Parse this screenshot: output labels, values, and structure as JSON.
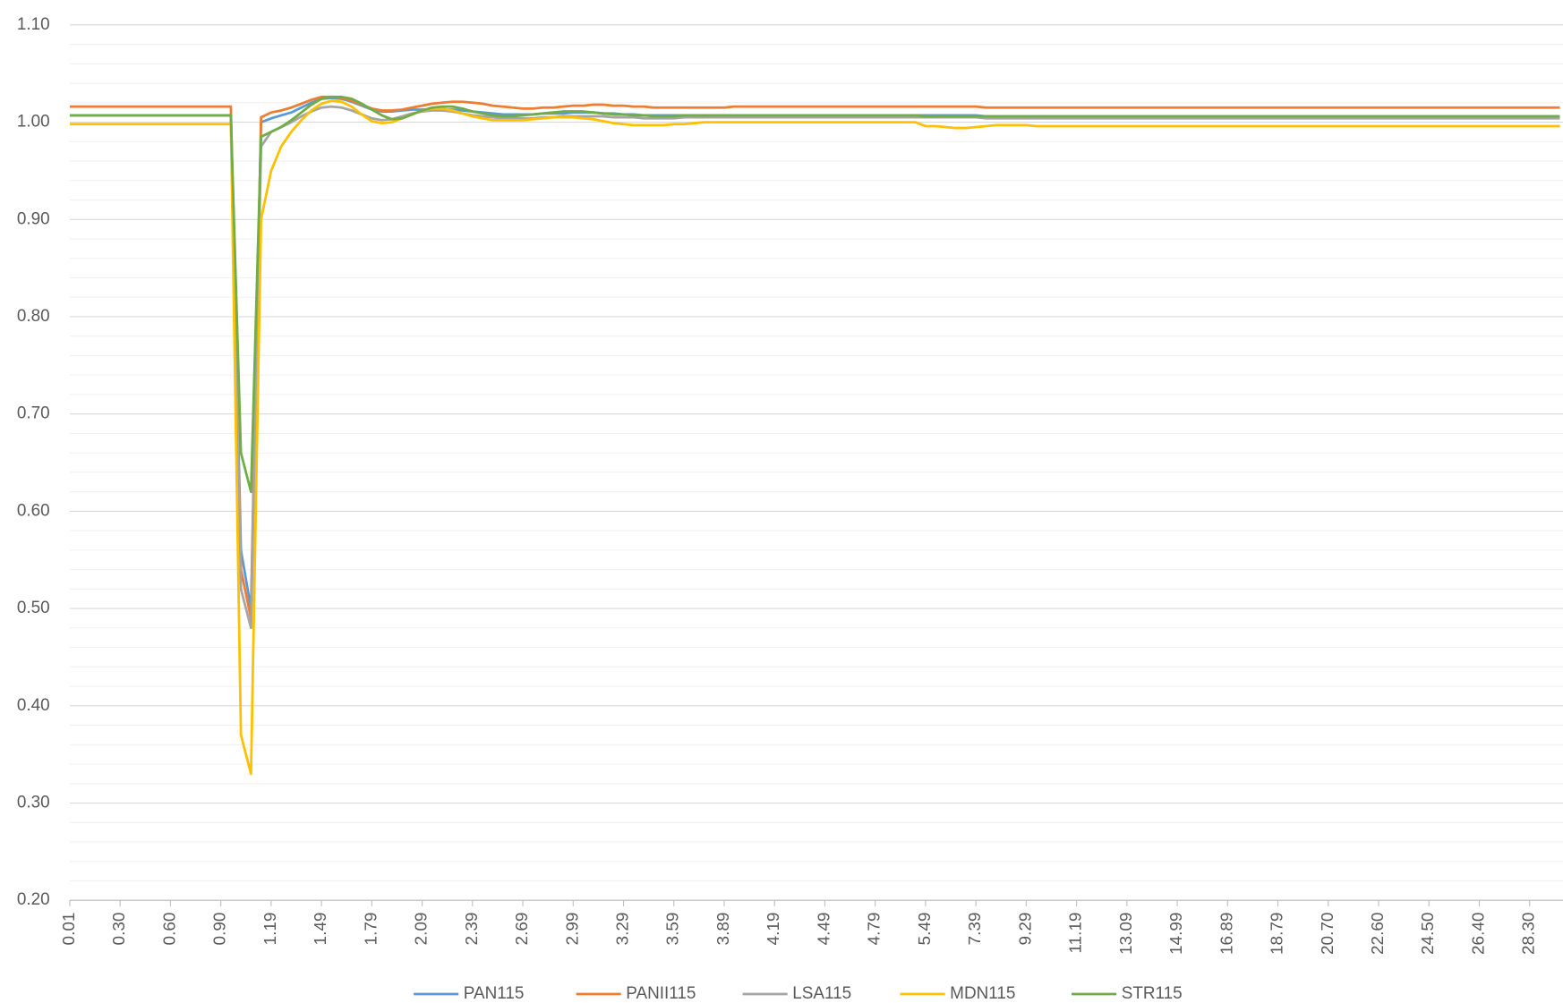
{
  "chart_data": {
    "type": "line",
    "categories": [
      "0.01",
      null,
      null,
      null,
      null,
      "0.30",
      null,
      null,
      null,
      null,
      "0.60",
      null,
      null,
      null,
      null,
      "0.90",
      null,
      null,
      null,
      null,
      "1.19",
      null,
      null,
      null,
      null,
      "1.49",
      null,
      null,
      null,
      null,
      "1.79",
      null,
      null,
      null,
      null,
      "2.09",
      null,
      null,
      null,
      null,
      "2.39",
      null,
      null,
      null,
      null,
      "2.69",
      null,
      null,
      null,
      null,
      "2.99",
      null,
      null,
      null,
      null,
      "3.29",
      null,
      null,
      null,
      null,
      "3.59",
      null,
      null,
      null,
      null,
      "3.89",
      null,
      null,
      null,
      null,
      "4.19",
      null,
      null,
      null,
      null,
      "4.49",
      null,
      null,
      null,
      null,
      "4.79",
      null,
      null,
      null,
      null,
      "5.49",
      null,
      null,
      null,
      null,
      "7.39",
      null,
      null,
      null,
      null,
      "9.29",
      null,
      null,
      null,
      null,
      "11.19",
      null,
      null,
      null,
      null,
      "13.09",
      null,
      null,
      null,
      null,
      "14.99",
      null,
      null,
      null,
      null,
      "16.89",
      null,
      null,
      null,
      null,
      "18.79",
      null,
      null,
      null,
      null,
      "20.70",
      null,
      null,
      null,
      null,
      "22.60",
      null,
      null,
      null,
      null,
      "24.50",
      null,
      null,
      null,
      null,
      "26.40",
      null,
      null,
      null,
      null,
      "28.30",
      null,
      null,
      null
    ],
    "series": [
      {
        "name": "PAN115",
        "color": "#5b9bd5",
        "values": [
          1.007,
          1.007,
          1.007,
          1.007,
          1.007,
          1.007,
          1.007,
          1.007,
          1.007,
          1.007,
          1.007,
          1.007,
          1.007,
          1.007,
          1.007,
          1.007,
          1.007,
          0.56,
          0.5,
          1.0,
          1.004,
          1.007,
          1.01,
          1.015,
          1.02,
          1.024,
          1.025,
          1.024,
          1.021,
          1.017,
          1.013,
          1.011,
          1.011,
          1.012,
          1.013,
          1.013,
          1.013,
          1.013,
          1.013,
          1.012,
          1.011,
          1.01,
          1.009,
          1.008,
          1.008,
          1.008,
          1.008,
          1.009,
          1.009,
          1.009,
          1.01,
          1.01,
          1.01,
          1.009,
          1.009,
          1.008,
          1.008,
          1.007,
          1.007,
          1.007,
          1.007,
          1.007,
          1.007,
          1.007,
          1.007,
          1.007,
          1.007,
          1.007,
          1.007,
          1.007,
          1.007,
          1.007,
          1.007,
          1.007,
          1.007,
          1.007,
          1.007,
          1.007,
          1.007,
          1.007,
          1.007,
          1.007,
          1.007,
          1.007,
          1.007,
          1.007,
          1.007,
          1.007,
          1.007,
          1.007,
          1.007,
          1.006,
          1.006,
          1.006,
          1.006,
          1.006,
          1.006,
          1.006,
          1.006,
          1.006,
          1.006,
          1.006,
          1.006,
          1.006,
          1.006,
          1.006,
          1.006,
          1.006,
          1.006,
          1.006,
          1.006,
          1.006,
          1.006,
          1.006,
          1.006,
          1.006,
          1.006,
          1.006,
          1.006,
          1.006,
          1.006,
          1.006,
          1.006,
          1.006,
          1.006,
          1.006,
          1.006,
          1.006,
          1.006,
          1.006,
          1.006,
          1.006,
          1.006,
          1.006,
          1.006,
          1.006,
          1.006,
          1.006,
          1.006,
          1.006,
          1.006,
          1.006,
          1.006,
          1.006,
          1.006,
          1.006,
          1.006,
          1.006,
          1.006
        ]
      },
      {
        "name": "PANII115",
        "color": "#ed7d31",
        "values": [
          1.016,
          1.016,
          1.016,
          1.016,
          1.016,
          1.016,
          1.016,
          1.016,
          1.016,
          1.016,
          1.016,
          1.016,
          1.016,
          1.016,
          1.016,
          1.016,
          1.016,
          0.54,
          0.49,
          1.005,
          1.01,
          1.012,
          1.015,
          1.019,
          1.023,
          1.026,
          1.026,
          1.025,
          1.022,
          1.018,
          1.014,
          1.012,
          1.012,
          1.013,
          1.015,
          1.017,
          1.019,
          1.02,
          1.021,
          1.021,
          1.02,
          1.019,
          1.017,
          1.016,
          1.015,
          1.014,
          1.014,
          1.015,
          1.015,
          1.016,
          1.017,
          1.017,
          1.018,
          1.018,
          1.017,
          1.017,
          1.016,
          1.016,
          1.015,
          1.015,
          1.015,
          1.015,
          1.015,
          1.015,
          1.015,
          1.015,
          1.016,
          1.016,
          1.016,
          1.016,
          1.016,
          1.016,
          1.016,
          1.016,
          1.016,
          1.016,
          1.016,
          1.016,
          1.016,
          1.016,
          1.016,
          1.016,
          1.016,
          1.016,
          1.016,
          1.016,
          1.016,
          1.016,
          1.016,
          1.016,
          1.016,
          1.015,
          1.015,
          1.015,
          1.015,
          1.015,
          1.015,
          1.015,
          1.015,
          1.015,
          1.015,
          1.015,
          1.015,
          1.015,
          1.015,
          1.015,
          1.015,
          1.015,
          1.015,
          1.015,
          1.015,
          1.015,
          1.015,
          1.015,
          1.015,
          1.015,
          1.015,
          1.015,
          1.015,
          1.015,
          1.015,
          1.015,
          1.015,
          1.015,
          1.015,
          1.015,
          1.015,
          1.015,
          1.015,
          1.015,
          1.015,
          1.015,
          1.015,
          1.015,
          1.015,
          1.015,
          1.015,
          1.015,
          1.015,
          1.015,
          1.015,
          1.015,
          1.015,
          1.015,
          1.015,
          1.015,
          1.015,
          1.015,
          1.015
        ]
      },
      {
        "name": "LSA115",
        "color": "#a5a5a5",
        "values": [
          1.007,
          1.007,
          1.007,
          1.007,
          1.007,
          1.007,
          1.007,
          1.007,
          1.007,
          1.007,
          1.007,
          1.007,
          1.007,
          1.007,
          1.007,
          1.007,
          1.007,
          0.52,
          0.48,
          0.975,
          0.99,
          0.995,
          1.0,
          1.006,
          1.011,
          1.015,
          1.016,
          1.015,
          1.012,
          1.008,
          1.004,
          1.002,
          1.003,
          1.006,
          1.009,
          1.011,
          1.012,
          1.012,
          1.011,
          1.009,
          1.007,
          1.006,
          1.005,
          1.004,
          1.004,
          1.004,
          1.004,
          1.005,
          1.005,
          1.006,
          1.006,
          1.006,
          1.006,
          1.006,
          1.005,
          1.005,
          1.005,
          1.004,
          1.004,
          1.004,
          1.004,
          1.005,
          1.005,
          1.005,
          1.005,
          1.005,
          1.005,
          1.005,
          1.005,
          1.005,
          1.005,
          1.005,
          1.005,
          1.005,
          1.005,
          1.005,
          1.005,
          1.005,
          1.005,
          1.005,
          1.005,
          1.005,
          1.005,
          1.005,
          1.005,
          1.005,
          1.005,
          1.005,
          1.005,
          1.005,
          1.005,
          1.004,
          1.004,
          1.004,
          1.004,
          1.004,
          1.004,
          1.004,
          1.004,
          1.004,
          1.004,
          1.004,
          1.004,
          1.004,
          1.004,
          1.004,
          1.004,
          1.004,
          1.004,
          1.004,
          1.004,
          1.004,
          1.004,
          1.004,
          1.004,
          1.004,
          1.004,
          1.004,
          1.004,
          1.004,
          1.004,
          1.004,
          1.004,
          1.004,
          1.004,
          1.004,
          1.004,
          1.004,
          1.004,
          1.004,
          1.004,
          1.004,
          1.004,
          1.004,
          1.004,
          1.004,
          1.004,
          1.004,
          1.004,
          1.004,
          1.004,
          1.004,
          1.004,
          1.004,
          1.004,
          1.004,
          1.004,
          1.004,
          1.004
        ]
      },
      {
        "name": "MDN115",
        "color": "#ffc000",
        "values": [
          0.998,
          0.998,
          0.998,
          0.998,
          0.998,
          0.998,
          0.998,
          0.998,
          0.998,
          0.998,
          0.998,
          0.998,
          0.998,
          0.998,
          0.998,
          0.998,
          0.998,
          0.37,
          0.33,
          0.9,
          0.95,
          0.975,
          0.99,
          1.002,
          1.012,
          1.019,
          1.022,
          1.021,
          1.016,
          1.008,
          1.001,
          0.999,
          1.0,
          1.004,
          1.008,
          1.012,
          1.014,
          1.014,
          1.012,
          1.009,
          1.006,
          1.004,
          1.002,
          1.002,
          1.002,
          1.002,
          1.003,
          1.004,
          1.005,
          1.005,
          1.005,
          1.004,
          1.003,
          1.001,
          0.999,
          0.998,
          0.997,
          0.997,
          0.997,
          0.997,
          0.998,
          0.998,
          0.999,
          1.0,
          1.0,
          1.0,
          1.0,
          1.0,
          1.0,
          1.0,
          1.0,
          1.0,
          1.0,
          1.0,
          1.0,
          1.0,
          1.0,
          1.0,
          1.0,
          1.0,
          1.0,
          1.0,
          1.0,
          1.0,
          1.0,
          0.996,
          0.996,
          0.995,
          0.994,
          0.994,
          0.995,
          0.996,
          0.997,
          0.997,
          0.997,
          0.997,
          0.996,
          0.996,
          0.996,
          0.996,
          0.996,
          0.996,
          0.996,
          0.996,
          0.996,
          0.996,
          0.996,
          0.996,
          0.996,
          0.996,
          0.996,
          0.996,
          0.996,
          0.996,
          0.996,
          0.996,
          0.996,
          0.996,
          0.996,
          0.996,
          0.996,
          0.996,
          0.996,
          0.996,
          0.996,
          0.996,
          0.996,
          0.996,
          0.996,
          0.996,
          0.996,
          0.996,
          0.996,
          0.996,
          0.996,
          0.996,
          0.996,
          0.996,
          0.996,
          0.996,
          0.996,
          0.996,
          0.996,
          0.996,
          0.996,
          0.996,
          0.996,
          0.996,
          0.996
        ]
      },
      {
        "name": "STR115",
        "color": "#70ad47",
        "values": [
          1.007,
          1.007,
          1.007,
          1.007,
          1.007,
          1.007,
          1.007,
          1.007,
          1.007,
          1.007,
          1.007,
          1.007,
          1.007,
          1.007,
          1.007,
          1.007,
          1.007,
          0.66,
          0.62,
          0.985,
          0.99,
          0.995,
          1.002,
          1.01,
          1.018,
          1.024,
          1.026,
          1.026,
          1.024,
          1.019,
          1.013,
          1.007,
          1.003,
          1.004,
          1.008,
          1.012,
          1.015,
          1.016,
          1.016,
          1.014,
          1.011,
          1.009,
          1.007,
          1.006,
          1.006,
          1.007,
          1.008,
          1.009,
          1.01,
          1.011,
          1.011,
          1.011,
          1.01,
          1.009,
          1.008,
          1.008,
          1.007,
          1.007,
          1.006,
          1.006,
          1.006,
          1.007,
          1.007,
          1.007,
          1.007,
          1.007,
          1.007,
          1.007,
          1.007,
          1.007,
          1.007,
          1.007,
          1.007,
          1.007,
          1.007,
          1.007,
          1.007,
          1.007,
          1.007,
          1.007,
          1.007,
          1.007,
          1.007,
          1.007,
          1.007,
          1.006,
          1.006,
          1.006,
          1.006,
          1.006,
          1.006,
          1.006,
          1.006,
          1.006,
          1.006,
          1.006,
          1.006,
          1.006,
          1.006,
          1.006,
          1.006,
          1.006,
          1.006,
          1.006,
          1.006,
          1.006,
          1.006,
          1.006,
          1.006,
          1.006,
          1.006,
          1.006,
          1.006,
          1.006,
          1.006,
          1.006,
          1.006,
          1.006,
          1.006,
          1.006,
          1.006,
          1.006,
          1.006,
          1.006,
          1.006,
          1.006,
          1.006,
          1.006,
          1.006,
          1.006,
          1.006,
          1.006,
          1.006,
          1.006,
          1.006,
          1.006,
          1.006,
          1.006,
          1.006,
          1.006,
          1.006,
          1.006,
          1.006,
          1.006,
          1.006,
          1.006,
          1.006,
          1.006,
          1.006
        ]
      }
    ],
    "ylim": [
      0.2,
      1.1
    ],
    "yticks": [
      {
        "value": 0.2,
        "label": "0.20"
      },
      {
        "value": 0.3,
        "label": "0.30"
      },
      {
        "value": 0.4,
        "label": "0.40"
      },
      {
        "value": 0.5,
        "label": "0.50"
      },
      {
        "value": 0.6,
        "label": "0.60"
      },
      {
        "value": 0.7,
        "label": "0.70"
      },
      {
        "value": 0.8,
        "label": "0.80"
      },
      {
        "value": 0.9,
        "label": "0.90"
      },
      {
        "value": 1.0,
        "label": "1.00"
      },
      {
        "value": 1.1,
        "label": "1.10"
      }
    ],
    "yticks_minor": [
      0.22,
      0.24,
      0.26,
      0.28,
      0.32,
      0.34,
      0.36,
      0.38,
      0.42,
      0.44,
      0.46,
      0.48,
      0.52,
      0.54,
      0.56,
      0.58,
      0.62,
      0.64,
      0.66,
      0.68,
      0.72,
      0.74,
      0.76,
      0.78,
      0.82,
      0.84,
      0.86,
      0.88,
      0.92,
      0.94,
      0.96,
      0.98,
      1.02,
      1.04,
      1.06,
      1.08
    ],
    "grid": true,
    "legend": "bottom"
  }
}
